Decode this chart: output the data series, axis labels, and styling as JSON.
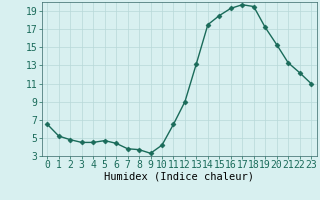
{
  "xlabel": "Humidex (Indice chaleur)",
  "x": [
    0,
    1,
    2,
    3,
    4,
    5,
    6,
    7,
    8,
    9,
    10,
    11,
    12,
    13,
    14,
    15,
    16,
    17,
    18,
    19,
    20,
    21,
    22,
    23
  ],
  "y": [
    6.5,
    5.2,
    4.8,
    4.5,
    4.5,
    4.7,
    4.4,
    3.8,
    3.7,
    3.3,
    4.2,
    6.5,
    9.0,
    13.2,
    17.5,
    18.5,
    19.3,
    19.7,
    19.5,
    17.2,
    15.3,
    13.3,
    12.2,
    11.0
  ],
  "line_color": "#1a6b5a",
  "marker": "D",
  "markersize": 2.5,
  "linewidth": 1.0,
  "bg_color": "#d8f0f0",
  "grid_color": "#b8d8d8",
  "ylim": [
    3,
    20
  ],
  "yticks": [
    3,
    5,
    7,
    9,
    11,
    13,
    15,
    17,
    19
  ],
  "xticks": [
    0,
    1,
    2,
    3,
    4,
    5,
    6,
    7,
    8,
    9,
    10,
    11,
    12,
    13,
    14,
    15,
    16,
    17,
    18,
    19,
    20,
    21,
    22,
    23
  ],
  "xlabel_fontsize": 7.5,
  "tick_fontsize": 7
}
